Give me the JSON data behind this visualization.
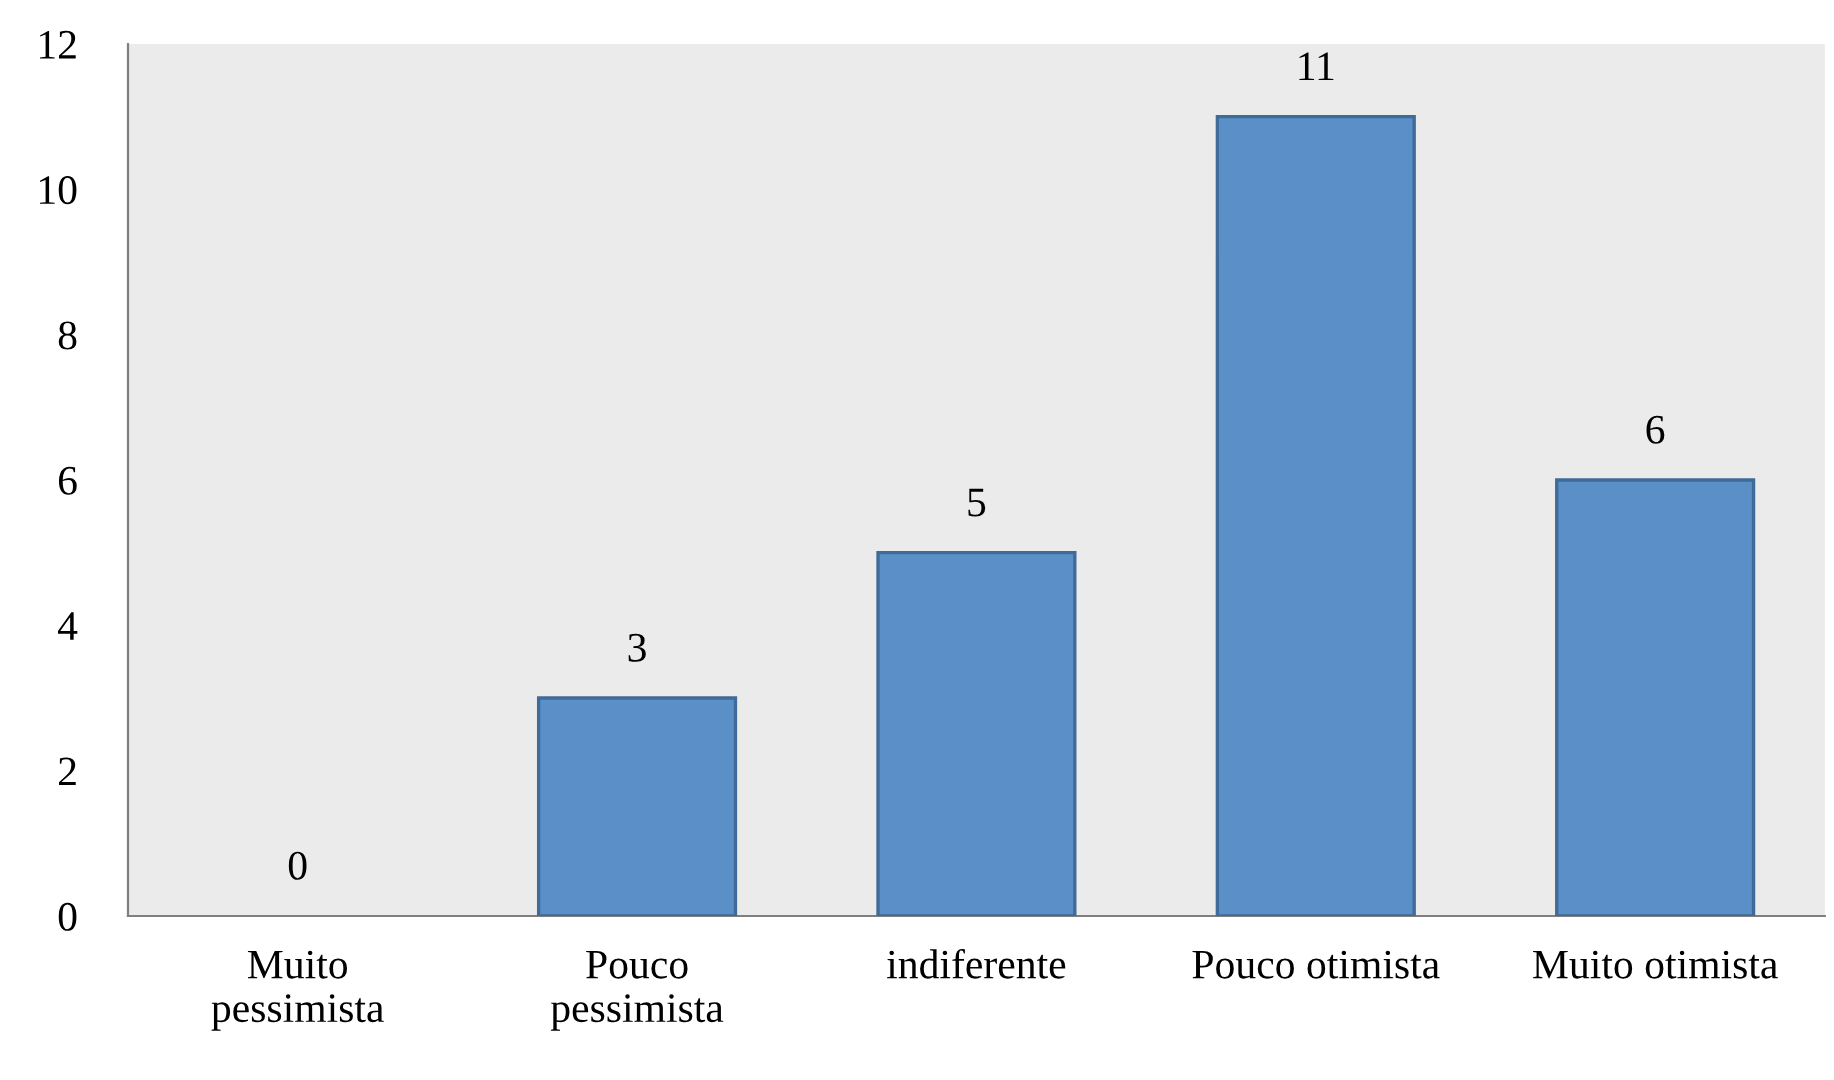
{
  "chart_data": {
    "type": "bar",
    "categories": [
      "Muito\npessimista",
      "Pouco\npessimista",
      "indiferente",
      "Pouco otimista",
      "Muito otimista"
    ],
    "values": [
      0,
      3,
      5,
      11,
      6
    ],
    "color": "#5b8fc7",
    "ylim": [
      0,
      12
    ],
    "yticks": [
      0,
      2,
      4,
      6,
      8,
      10,
      12
    ],
    "grid": false,
    "legend": false,
    "data_labels": true
  }
}
